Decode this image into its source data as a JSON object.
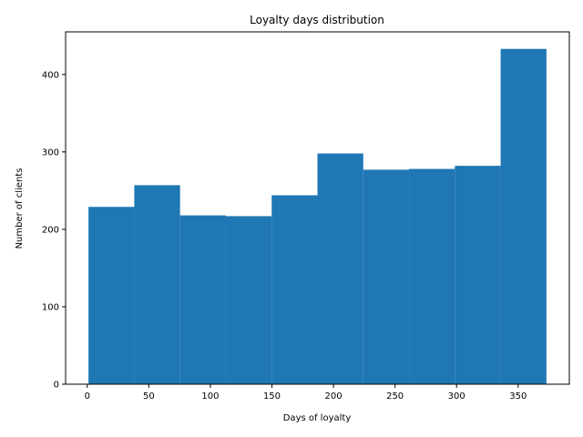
{
  "chart_data": {
    "type": "bar",
    "title": "Loyalty days distribution",
    "xlabel": "Days of loyalty",
    "ylabel": "Number of clients",
    "bar_color": "#1f77b4",
    "histogram": true,
    "bins": [
      {
        "start": 1,
        "end": 38.2,
        "count": 229
      },
      {
        "start": 38.2,
        "end": 75.4,
        "count": 257
      },
      {
        "start": 75.4,
        "end": 112.6,
        "count": 218
      },
      {
        "start": 112.6,
        "end": 149.8,
        "count": 217
      },
      {
        "start": 149.8,
        "end": 187,
        "count": 244
      },
      {
        "start": 187,
        "end": 224.2,
        "count": 298
      },
      {
        "start": 224.2,
        "end": 261.4,
        "count": 277
      },
      {
        "start": 261.4,
        "end": 298.6,
        "count": 278
      },
      {
        "start": 298.6,
        "end": 335.8,
        "count": 282
      },
      {
        "start": 335.8,
        "end": 373,
        "count": 433
      }
    ],
    "xlim": [
      -17.6,
      391.6
    ],
    "ylim": [
      0,
      455
    ],
    "xticks": [
      0,
      50,
      100,
      150,
      200,
      250,
      300,
      350
    ],
    "yticks": [
      0,
      100,
      200,
      300,
      400
    ],
    "grid": false
  }
}
